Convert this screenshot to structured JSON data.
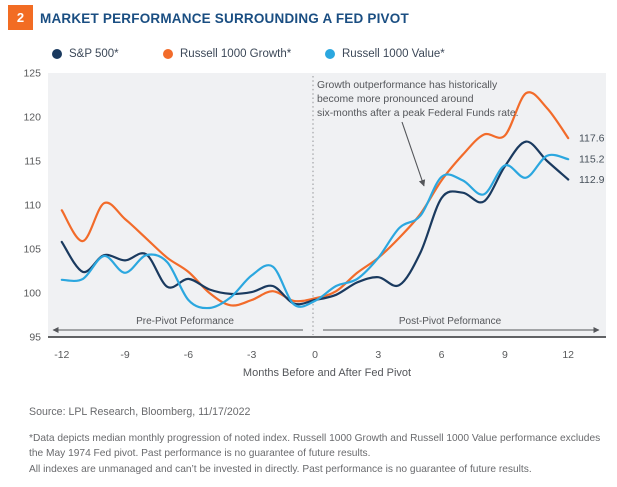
{
  "header": {
    "badge": "2",
    "badge_color": "#F26C23",
    "title": "MARKET PERFORMANCE SURROUNDING A FED PIVOT",
    "title_color": "#1A4E82"
  },
  "chart_data": {
    "type": "line",
    "x": [
      -12,
      -11,
      -10,
      -9,
      -8,
      -7,
      -6,
      -5,
      -4,
      -3,
      -2,
      -1,
      0,
      1,
      2,
      3,
      4,
      5,
      6,
      7,
      8,
      9,
      10,
      11,
      12
    ],
    "series": [
      {
        "name": "S&P 500*",
        "color": "#1A3A5F",
        "end_label": "112.9",
        "values": [
          105.8,
          102.4,
          104.3,
          103.7,
          104.4,
          100.7,
          101.6,
          100.4,
          99.9,
          100.1,
          100.8,
          98.8,
          99.2,
          99.8,
          101.2,
          101.8,
          100.9,
          104.6,
          110.8,
          111.4,
          110.4,
          114.4,
          117.2,
          115.0,
          112.9
        ]
      },
      {
        "name": "Russell 1000 Growth*",
        "color": "#F26B2A",
        "end_label": "117.6",
        "values": [
          109.4,
          105.9,
          110.2,
          108.4,
          106.2,
          104.0,
          102.4,
          100.0,
          98.6,
          99.2,
          100.2,
          99.1,
          99.4,
          100.2,
          102.3,
          104.0,
          106.3,
          109.0,
          112.8,
          115.7,
          118.0,
          117.9,
          122.7,
          121.0,
          117.6
        ]
      },
      {
        "name": "Russell 1000 Value*",
        "color": "#2BA7DF",
        "end_label": "115.2",
        "values": [
          101.5,
          101.6,
          104.2,
          102.3,
          104.3,
          103.5,
          99.2,
          98.3,
          99.5,
          102.0,
          103.0,
          98.7,
          99.1,
          100.8,
          101.6,
          104.0,
          107.4,
          108.8,
          113.2,
          112.8,
          111.2,
          114.5,
          113.1,
          115.6,
          115.2
        ]
      }
    ],
    "x_ticks": [
      -12,
      -9,
      -6,
      -3,
      0,
      3,
      6,
      9,
      12
    ],
    "y_ticks": [
      125,
      120,
      115,
      110,
      105,
      100,
      95
    ],
    "ylim": [
      95,
      125
    ],
    "xlabel": "Months Before and After Fed Pivot",
    "pivot_x": 0,
    "grid": false,
    "plot_bg": "#F0F1F3",
    "pre_label": "Pre-Pivot Peformance",
    "post_label": "Post-Pivot Peformance",
    "annotation": "Growth outperformance has historically\nbecome more pronounced around\nsix-months after a peak Federal Funds rate."
  },
  "footer": {
    "source": "Source: LPL Research, Bloomberg,  11/17/2022",
    "footnote1": "*Data depicts median monthly progression of noted index. Russell 1000 Growth and Russell 1000 Value performance excludes the May 1974 Fed pivot. Past performance is no guarantee of future results.",
    "footnote2": "All indexes are unmanaged and can’t be invested in directly. Past performance is no guarantee of future results."
  }
}
